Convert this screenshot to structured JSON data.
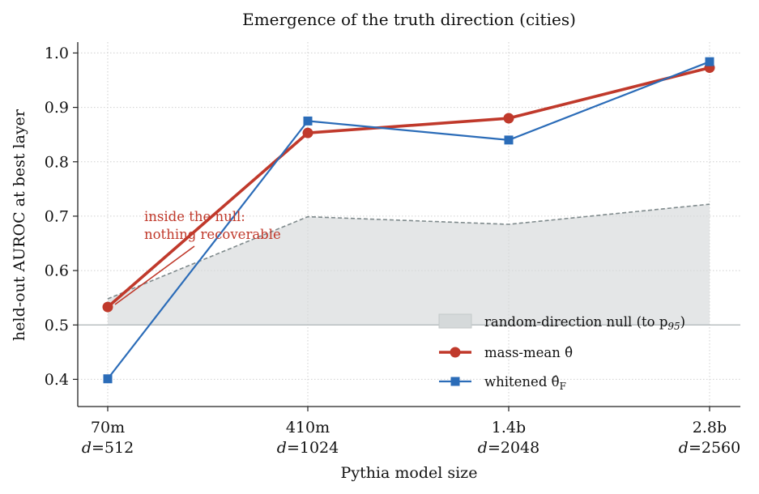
{
  "chart_data": {
    "type": "line",
    "title": "Emergence of the truth direction (cities)",
    "xlabel": "Pythia model size",
    "ylabel": "held-out AUROC at best layer",
    "categories": [
      "70m",
      "410m",
      "1.4b",
      "2.8b"
    ],
    "category_dims": [
      "d=512",
      "d=1024",
      "d=2048",
      "d=2560"
    ],
    "ylim": [
      0.35,
      1.02
    ],
    "yticks": [
      "0.4",
      "0.5",
      "0.6",
      "0.7",
      "0.8",
      "0.9",
      "1.0"
    ],
    "grid": true,
    "legend_position": "lower-right",
    "series": [
      {
        "name": "random-direction null (to p95)",
        "kind": "band",
        "lower": [
          0.5,
          0.5,
          0.5,
          0.5
        ],
        "values": [
          0.548,
          0.699,
          0.685,
          0.722
        ],
        "color": "#d5d9da",
        "line_color": "#7f8a8c"
      },
      {
        "name": "mass-mean θ̂",
        "kind": "line",
        "values": [
          0.533,
          0.853,
          0.88,
          0.973
        ],
        "color": "#c0392b",
        "marker": "circle"
      },
      {
        "name": "whitened θ̂F",
        "kind": "line",
        "values": [
          0.401,
          0.875,
          0.84,
          0.984
        ],
        "color": "#2b6cb8",
        "marker": "square"
      }
    ],
    "reference_line": 0.5,
    "annotation": {
      "line1": "inside the null:",
      "line2": "nothing recoverable"
    }
  },
  "legend": {
    "null_label": "random-direction null (to p",
    "null_sub": "95",
    "null_close": ")",
    "massmean_label": "mass-mean θ̂",
    "whitened_label": "whitened θ̂",
    "whitened_sub": "F"
  }
}
